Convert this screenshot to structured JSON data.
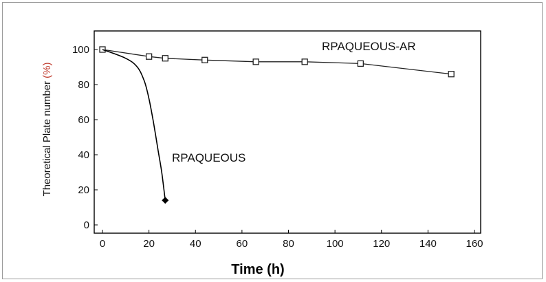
{
  "chart_data": {
    "type": "line",
    "xlabel": "Time (h)",
    "ylabel": "Theoretical Plate number",
    "ylabel_unit": "(%)",
    "xlim": [
      0,
      160
    ],
    "ylim": [
      0,
      110
    ],
    "xticks": [
      0,
      20,
      40,
      60,
      80,
      100,
      120,
      140,
      160
    ],
    "yticks": [
      0,
      20,
      40,
      60,
      80,
      100
    ],
    "grid": false,
    "series": [
      {
        "name": "RPAQUEOUS-AR",
        "color": "#222222",
        "marker": "square-open",
        "points": [
          [
            0,
            100
          ],
          [
            20,
            96
          ],
          [
            27,
            95
          ],
          [
            44,
            94
          ],
          [
            66,
            93
          ],
          [
            87,
            93
          ],
          [
            111,
            92
          ],
          [
            150,
            86
          ]
        ]
      },
      {
        "name": "RPAQUEOUS",
        "color": "#000000",
        "marker": "diamond-filled",
        "points": [
          [
            0,
            100
          ],
          [
            10,
            95
          ],
          [
            15,
            90
          ],
          [
            18,
            82
          ],
          [
            20,
            72
          ],
          [
            22,
            58
          ],
          [
            24,
            42
          ],
          [
            25.5,
            30
          ],
          [
            27,
            14
          ]
        ],
        "marker_points": [
          [
            0,
            100
          ],
          [
            27,
            14
          ]
        ]
      }
    ]
  }
}
